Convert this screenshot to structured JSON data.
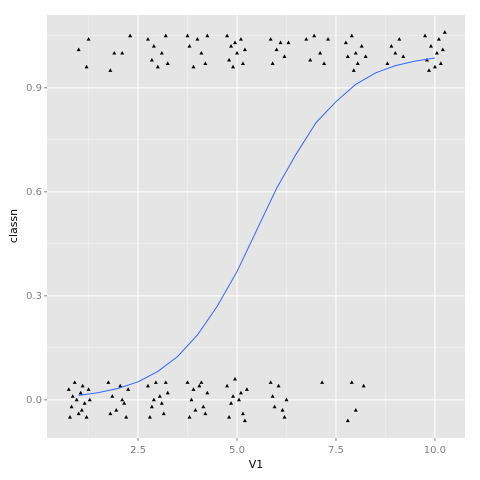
{
  "chart_data": {
    "type": "scatter",
    "x_label": "V1",
    "y_label": "classn",
    "xlim": [
      0.2,
      10.76
    ],
    "ylim": [
      -0.11,
      1.11
    ],
    "xticks": [
      {
        "value": 2.5,
        "label": "2.5"
      },
      {
        "value": 5,
        "label": "5.0"
      },
      {
        "value": 7.5,
        "label": "7.5"
      },
      {
        "value": 10,
        "label": "10.0"
      }
    ],
    "yticks": [
      {
        "value": 0,
        "label": "0.0"
      },
      0.3,
      0.6,
      0.9
    ],
    "x_minor": [
      1.25,
      3.75,
      6.25,
      8.75
    ],
    "y_minor": [
      0.15,
      0.45,
      0.75,
      1.05
    ],
    "grid": true,
    "points": {
      "color": "#000000",
      "x": [
        0.75,
        0.82,
        0.9,
        0.95,
        1,
        1.05,
        1.1,
        1.15,
        1.2,
        1.25,
        0.85,
        1.08,
        0.78,
        1.28,
        1.75,
        1.85,
        1.95,
        2.05,
        2.15,
        2.25,
        1.8,
        2.1,
        2.2,
        2.75,
        2.85,
        2.95,
        3.05,
        3.15,
        3.25,
        2.8,
        3.1,
        3.2,
        2.9,
        3.75,
        3.85,
        3.95,
        4.05,
        4.15,
        4.25,
        3.8,
        4.1,
        4.2,
        3.9,
        4.75,
        4.85,
        4.95,
        5.05,
        5.15,
        5.25,
        4.8,
        5.1,
        5.2,
        4.9,
        5.85,
        5.95,
        6.05,
        6.15,
        6.25,
        5.9,
        6.2,
        7.15,
        7.9,
        7.8,
        8.2,
        8,
        1,
        1.2,
        1.25,
        1.8,
        1.9,
        2.1,
        2.3,
        2.75,
        2.85,
        2.9,
        3,
        3.1,
        3.2,
        3.25,
        3.75,
        3.8,
        3.9,
        4,
        4.1,
        4.2,
        4.25,
        4.75,
        4.8,
        4.85,
        4.9,
        5,
        5.1,
        5.15,
        5.2,
        4.95,
        5.85,
        5.9,
        6,
        6.1,
        6.2,
        6.3,
        6.75,
        6.85,
        6.95,
        7.1,
        7.2,
        7.3,
        7.75,
        7.8,
        7.9,
        8,
        8.05,
        8.15,
        8.25,
        7.95,
        8.8,
        8.9,
        9,
        9.1,
        9.2,
        9.75,
        9.8,
        9.9,
        10,
        10.05,
        10.1,
        10.15,
        10.2,
        9.85,
        10.25
      ],
      "values": [
        0.03,
        -0.02,
        0.05,
        0,
        -0.04,
        0.02,
        0.04,
        -0.01,
        -0.05,
        0.03,
        0.01,
        -0.03,
        -0.05,
        0,
        0.05,
        0.01,
        -0.03,
        0.04,
        -0.01,
        0.03,
        -0.04,
        0,
        -0.05,
        0.04,
        -0.02,
        0.05,
        0.01,
        -0.04,
        0.02,
        -0.05,
        -0.01,
        0.05,
        0,
        0.05,
        0,
        -0.03,
        0.04,
        -0.02,
        0.02,
        -0.05,
        0.05,
        -0.04,
        0.03,
        0.04,
        -0.01,
        0.06,
        0,
        -0.04,
        0.03,
        -0.05,
        0.02,
        -0.06,
        0.01,
        0.05,
        -0.02,
        0.04,
        -0.03,
        0,
        0.01,
        -0.05,
        0.05,
        0.05,
        -0.06,
        0.04,
        -0.03,
        1.01,
        0.96,
        1.04,
        0.95,
        1,
        1,
        1.05,
        1.04,
        0.98,
        1.02,
        0.96,
        1,
        1.05,
        0.97,
        1.05,
        1.02,
        0.96,
        1.04,
        1,
        0.97,
        1.05,
        1.05,
        0.98,
        1.02,
        0.96,
        1,
        1.04,
        0.97,
        1.01,
        1.03,
        1.04,
        0.97,
        1.01,
        1.03,
        0.99,
        1.03,
        1.04,
        0.98,
        1.05,
        1,
        0.97,
        1.04,
        1.03,
        0.99,
        1.05,
        1,
        0.97,
        1.02,
        0.99,
        0.95,
        0.97,
        1.02,
        1,
        1.04,
        0.99,
        1.05,
        0.98,
        1.02,
        0.96,
        1,
        1.04,
        0.97,
        1.01,
        0.95,
        1.06
      ]
    },
    "curve": {
      "color": "#3366ff",
      "x": [
        1,
        1.5,
        2,
        2.5,
        3,
        3.5,
        4,
        4.5,
        5,
        5.5,
        6,
        6.5,
        7,
        7.5,
        8,
        8.5,
        9,
        9.5,
        10
      ],
      "values": [
        0.013,
        0.021,
        0.033,
        0.052,
        0.082,
        0.125,
        0.187,
        0.27,
        0.37,
        0.49,
        0.61,
        0.71,
        0.8,
        0.86,
        0.91,
        0.943,
        0.964,
        0.977,
        0.986
      ]
    }
  }
}
